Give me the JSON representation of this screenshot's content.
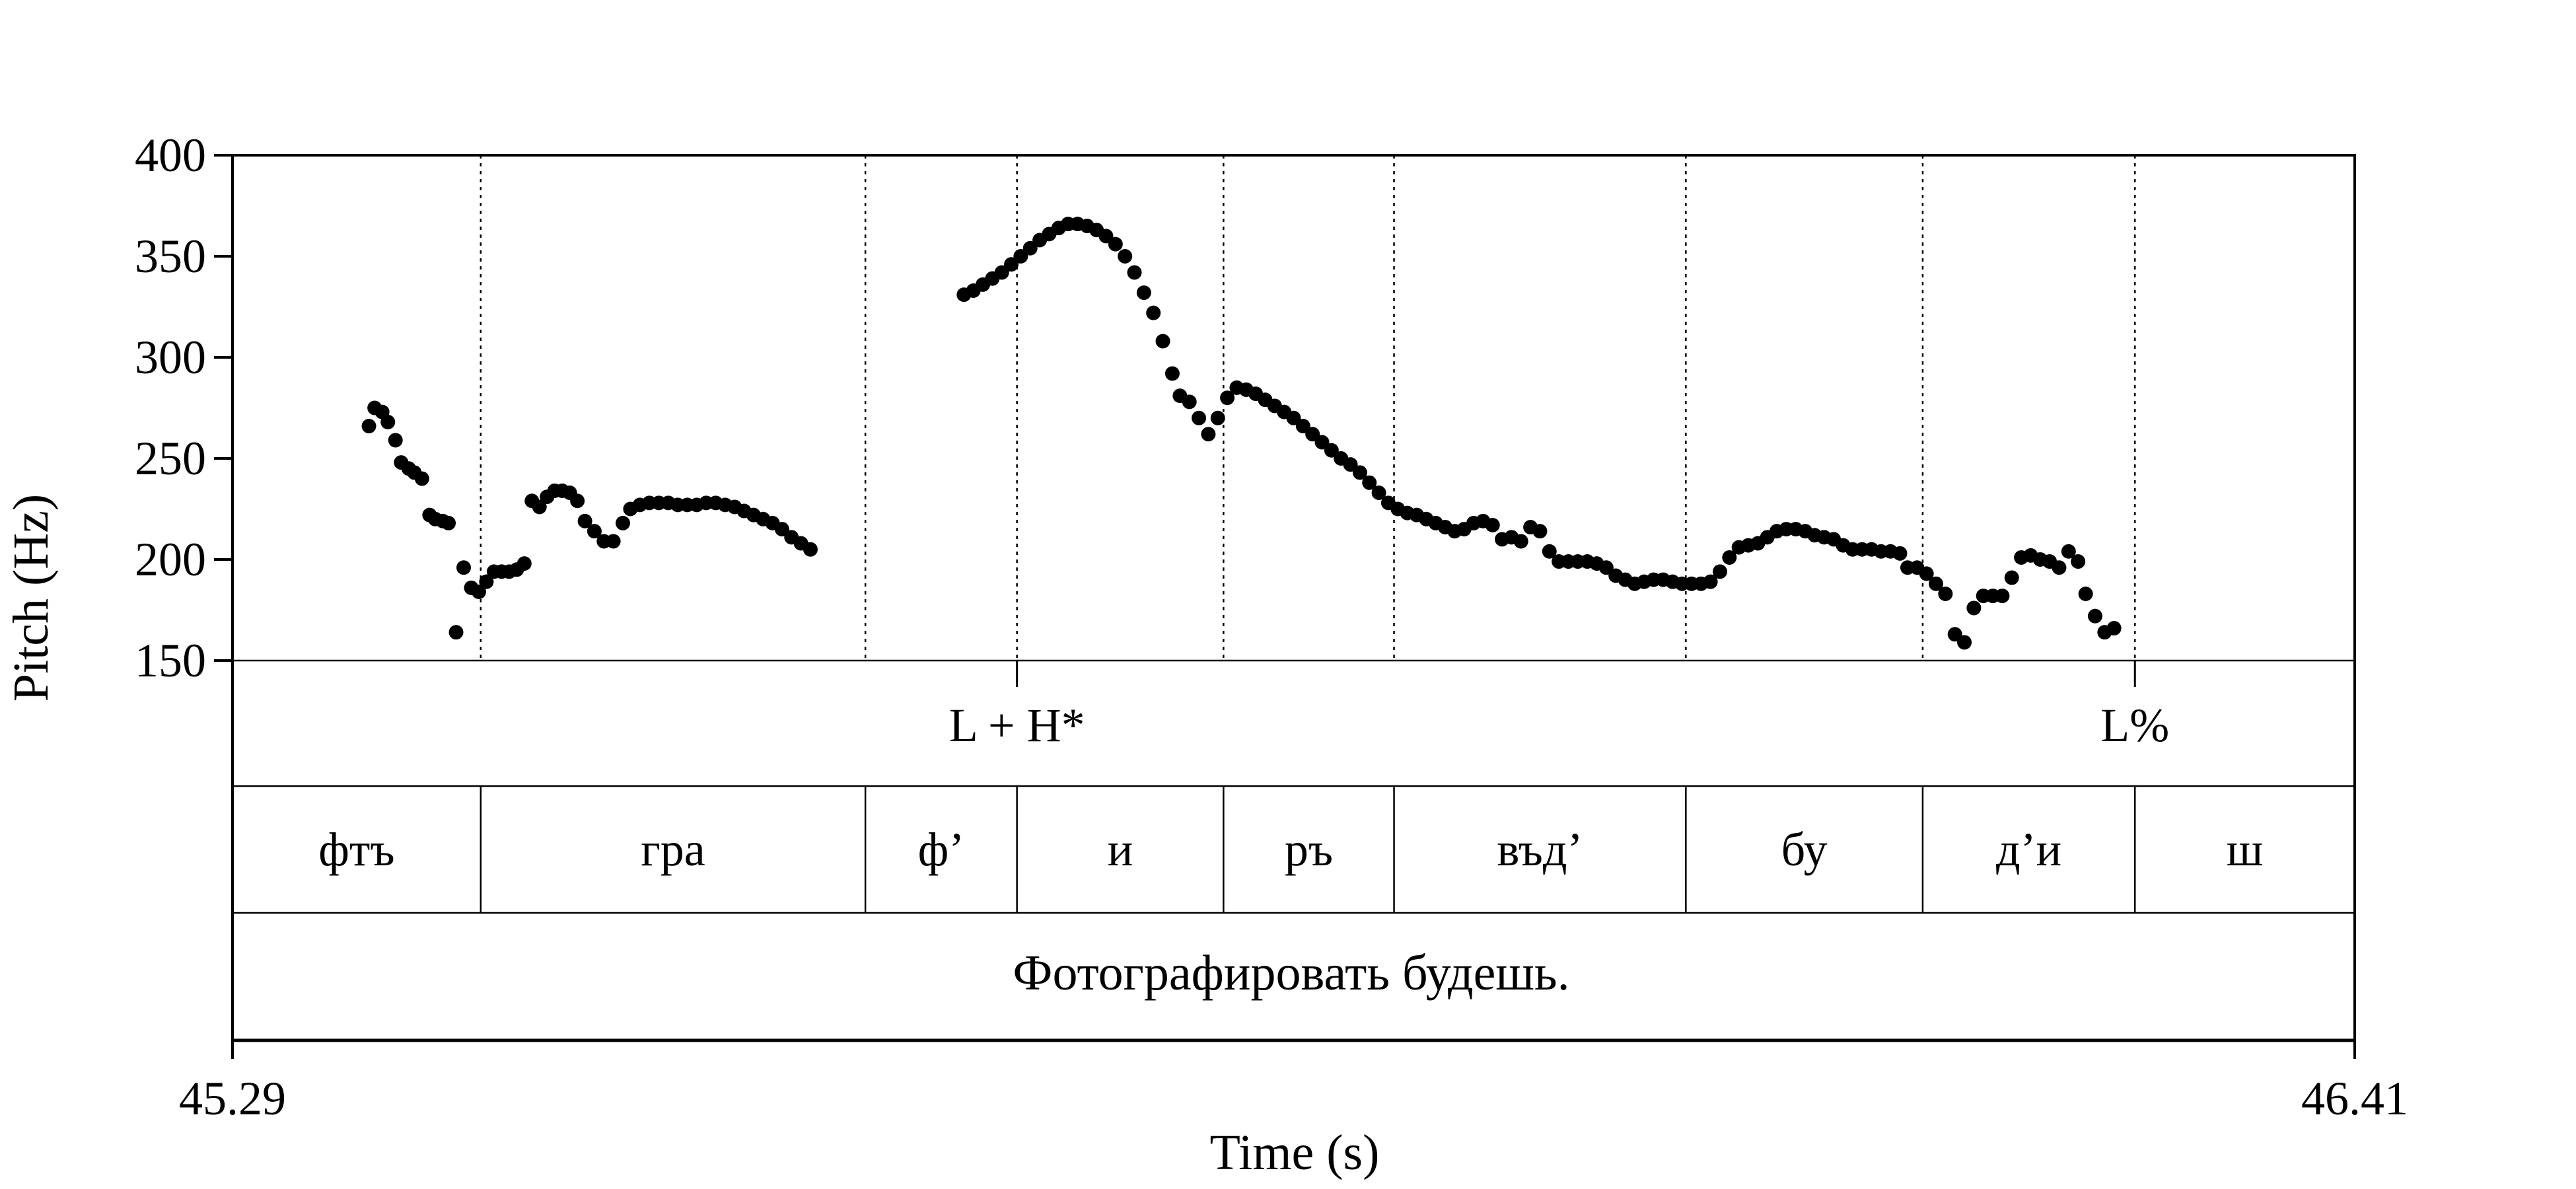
{
  "chart_data": {
    "type": "scatter",
    "xlabel": "Time (s)",
    "ylabel": "Pitch (Hz)",
    "xlim": [
      45.29,
      46.41
    ],
    "ylim": [
      150,
      400
    ],
    "x_tick_labels": [
      "45.29",
      "46.41"
    ],
    "y_ticks": [
      150,
      200,
      250,
      300,
      350,
      400
    ],
    "y_tick_labels": [
      "150",
      "200",
      "250",
      "300",
      "350",
      "400"
    ],
    "series": [
      {
        "color": "#000000",
        "points": [
          [
            45.362,
            266
          ],
          [
            45.365,
            275
          ],
          [
            45.369,
            273
          ],
          [
            45.372,
            268
          ],
          [
            45.376,
            259
          ],
          [
            45.379,
            248
          ],
          [
            45.383,
            245
          ],
          [
            45.386,
            243
          ],
          [
            45.39,
            240
          ],
          [
            45.394,
            222
          ],
          [
            45.397,
            220
          ],
          [
            45.401,
            219
          ],
          [
            45.404,
            218
          ],
          [
            45.408,
            164
          ],
          [
            45.412,
            196
          ],
          [
            45.416,
            186
          ],
          [
            45.42,
            184
          ],
          [
            45.424,
            189
          ],
          [
            45.428,
            194
          ],
          [
            45.432,
            194
          ],
          [
            45.436,
            194
          ],
          [
            45.44,
            195
          ],
          [
            45.444,
            198
          ],
          [
            45.448,
            229
          ],
          [
            45.452,
            226
          ],
          [
            45.456,
            231
          ],
          [
            45.46,
            234
          ],
          [
            45.464,
            234
          ],
          [
            45.468,
            233
          ],
          [
            45.472,
            229
          ],
          [
            45.476,
            219
          ],
          [
            45.481,
            214
          ],
          [
            45.486,
            209
          ],
          [
            45.491,
            209
          ],
          [
            45.496,
            218
          ],
          [
            45.5,
            225
          ],
          [
            45.505,
            227
          ],
          [
            45.51,
            228
          ],
          [
            45.515,
            228
          ],
          [
            45.52,
            228
          ],
          [
            45.525,
            227
          ],
          [
            45.53,
            227
          ],
          [
            45.535,
            227
          ],
          [
            45.54,
            228
          ],
          [
            45.545,
            228
          ],
          [
            45.55,
            227
          ],
          [
            45.555,
            226
          ],
          [
            45.56,
            224
          ],
          [
            45.565,
            222
          ],
          [
            45.57,
            220
          ],
          [
            45.575,
            218
          ],
          [
            45.58,
            215
          ],
          [
            45.585,
            211
          ],
          [
            45.59,
            208
          ],
          [
            45.595,
            205
          ],
          [
            45.676,
            331
          ],
          [
            45.681,
            333
          ],
          [
            45.686,
            336
          ],
          [
            45.691,
            339
          ],
          [
            45.696,
            342
          ],
          [
            45.701,
            346
          ],
          [
            45.706,
            350
          ],
          [
            45.711,
            354
          ],
          [
            45.716,
            358
          ],
          [
            45.721,
            361
          ],
          [
            45.726,
            364
          ],
          [
            45.731,
            366
          ],
          [
            45.736,
            366
          ],
          [
            45.741,
            365
          ],
          [
            45.746,
            363
          ],
          [
            45.751,
            360
          ],
          [
            45.756,
            356
          ],
          [
            45.761,
            350
          ],
          [
            45.766,
            342
          ],
          [
            45.771,
            332
          ],
          [
            45.776,
            322
          ],
          [
            45.781,
            308
          ],
          [
            45.786,
            292
          ],
          [
            45.79,
            281
          ],
          [
            45.795,
            278
          ],
          [
            45.8,
            270
          ],
          [
            45.805,
            262
          ],
          [
            45.81,
            270
          ],
          [
            45.815,
            280
          ],
          [
            45.82,
            285
          ],
          [
            45.825,
            284
          ],
          [
            45.83,
            282
          ],
          [
            45.835,
            279
          ],
          [
            45.84,
            276
          ],
          [
            45.845,
            273
          ],
          [
            45.85,
            270
          ],
          [
            45.855,
            266
          ],
          [
            45.86,
            262
          ],
          [
            45.865,
            258
          ],
          [
            45.87,
            254
          ],
          [
            45.875,
            250
          ],
          [
            45.88,
            247
          ],
          [
            45.885,
            243
          ],
          [
            45.89,
            238
          ],
          [
            45.895,
            233
          ],
          [
            45.9,
            228
          ],
          [
            45.905,
            225
          ],
          [
            45.91,
            223
          ],
          [
            45.915,
            222
          ],
          [
            45.92,
            220
          ],
          [
            45.925,
            218
          ],
          [
            45.93,
            216
          ],
          [
            45.935,
            214
          ],
          [
            45.94,
            215
          ],
          [
            45.945,
            218
          ],
          [
            45.95,
            219
          ],
          [
            45.955,
            217
          ],
          [
            45.96,
            210
          ],
          [
            45.965,
            211
          ],
          [
            45.97,
            209
          ],
          [
            45.975,
            216
          ],
          [
            45.98,
            214
          ],
          [
            45.985,
            204
          ],
          [
            45.99,
            199
          ],
          [
            45.995,
            199
          ],
          [
            46.0,
            199
          ],
          [
            46.005,
            199
          ],
          [
            46.01,
            198
          ],
          [
            46.015,
            196
          ],
          [
            46.02,
            192
          ],
          [
            46.025,
            190
          ],
          [
            46.03,
            188
          ],
          [
            46.035,
            189
          ],
          [
            46.04,
            190
          ],
          [
            46.045,
            190
          ],
          [
            46.05,
            189
          ],
          [
            46.055,
            188
          ],
          [
            46.06,
            188
          ],
          [
            46.065,
            188
          ],
          [
            46.07,
            189
          ],
          [
            46.075,
            194
          ],
          [
            46.08,
            201
          ],
          [
            46.085,
            206
          ],
          [
            46.09,
            207
          ],
          [
            46.095,
            208
          ],
          [
            46.1,
            211
          ],
          [
            46.105,
            214
          ],
          [
            46.11,
            215
          ],
          [
            46.115,
            215
          ],
          [
            46.12,
            214
          ],
          [
            46.125,
            212
          ],
          [
            46.13,
            211
          ],
          [
            46.135,
            210
          ],
          [
            46.14,
            207
          ],
          [
            46.145,
            205
          ],
          [
            46.15,
            205
          ],
          [
            46.155,
            205
          ],
          [
            46.16,
            204
          ],
          [
            46.165,
            204
          ],
          [
            46.17,
            203
          ],
          [
            46.174,
            196
          ],
          [
            46.179,
            196
          ],
          [
            46.184,
            193
          ],
          [
            46.189,
            188
          ],
          [
            46.194,
            183
          ],
          [
            46.199,
            163
          ],
          [
            46.204,
            159
          ],
          [
            46.209,
            176
          ],
          [
            46.214,
            182
          ],
          [
            46.219,
            182
          ],
          [
            46.224,
            182
          ],
          [
            46.229,
            191
          ],
          [
            46.234,
            201
          ],
          [
            46.239,
            202
          ],
          [
            46.244,
            200
          ],
          [
            46.249,
            199
          ],
          [
            46.254,
            196
          ],
          [
            46.259,
            204
          ],
          [
            46.264,
            199
          ],
          [
            46.268,
            183
          ],
          [
            46.273,
            172
          ],
          [
            46.278,
            164
          ],
          [
            46.283,
            166
          ]
        ]
      }
    ],
    "boundaries": [
      45.421,
      45.624,
      45.704,
      45.813,
      45.903,
      46.057,
      46.182,
      46.294
    ],
    "tones": [
      {
        "time": 45.704,
        "label": "L + H*"
      },
      {
        "time": 46.294,
        "label": "L%"
      }
    ],
    "syllables": [
      {
        "start": 45.29,
        "end": 45.421,
        "label": "фтъ"
      },
      {
        "start": 45.421,
        "end": 45.624,
        "label": "гра"
      },
      {
        "start": 45.624,
        "end": 45.704,
        "label": "ф’"
      },
      {
        "start": 45.704,
        "end": 45.813,
        "label": "и"
      },
      {
        "start": 45.813,
        "end": 45.903,
        "label": "ръ"
      },
      {
        "start": 45.903,
        "end": 46.057,
        "label": "въд’"
      },
      {
        "start": 46.057,
        "end": 46.182,
        "label": "бу"
      },
      {
        "start": 46.182,
        "end": 46.294,
        "label": "д’и"
      },
      {
        "start": 46.294,
        "end": 46.41,
        "label": "ш"
      }
    ],
    "sentence": "Фотографировать будешь.",
    "grid": false
  }
}
